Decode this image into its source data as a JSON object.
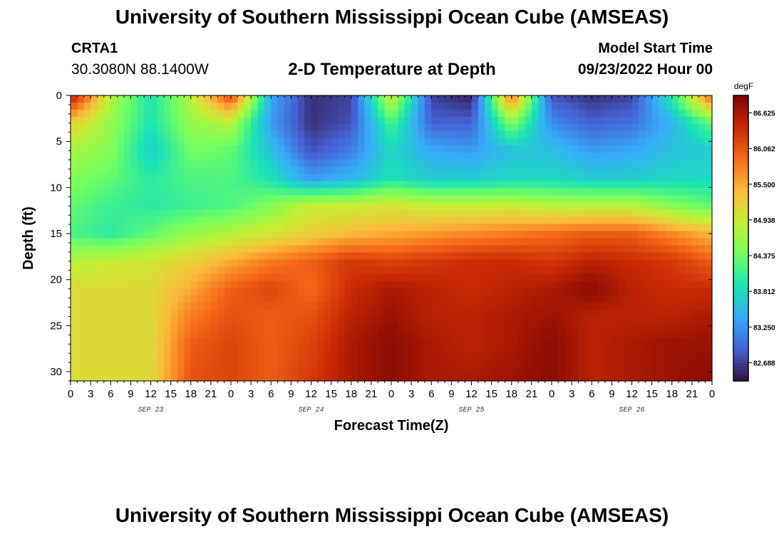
{
  "header": {
    "title": "University of Southern Mississippi Ocean Cube (AMSEAS)",
    "station": "CRTA1",
    "coords": "30.3080N  88.1400W",
    "subtitle": "2-D Temperature at Depth",
    "start_label": "Model Start Time",
    "start_value": "09/23/2022 Hour 00"
  },
  "footer": {
    "title": "University of Southern Mississippi Ocean Cube (AMSEAS)"
  },
  "colors": {
    "colormap": [
      "#30123b",
      "#4662d7",
      "#36aaf9",
      "#1ae4b6",
      "#72fe5e",
      "#c8ef34",
      "#faba39",
      "#f66b19",
      "#ca2a04",
      "#7a0403"
    ]
  },
  "chart_data": {
    "type": "heatmap",
    "title": "2-D Temperature at Depth",
    "xlabel": "Forecast Time(Z)",
    "ylabel": "Depth (ft)",
    "x_tick_labels": [
      "0",
      "3",
      "6",
      "9",
      "12",
      "15",
      "18",
      "21",
      "0",
      "3",
      "6",
      "9",
      "12",
      "15",
      "18",
      "21",
      "0",
      "3",
      "6",
      "9",
      "12",
      "15",
      "18",
      "21",
      "0",
      "3",
      "6",
      "9",
      "12",
      "15",
      "18",
      "21",
      "0"
    ],
    "x_date_labels": [
      "SEP 23",
      "SEP 24",
      "SEP 25",
      "SEP 26"
    ],
    "x_range_hours": [
      0,
      96
    ],
    "y_ticks": [
      0,
      5,
      10,
      15,
      20,
      25,
      30
    ],
    "y_range_ft": [
      0,
      31
    ],
    "colorbar": {
      "unit": "degF",
      "ticks": [
        "86.625",
        "86.062",
        "85.500",
        "84.938",
        "84.375",
        "83.812",
        "83.250",
        "82.688"
      ],
      "range": [
        82.4,
        86.9
      ]
    },
    "times_hours": [
      0,
      6,
      12,
      18,
      24,
      30,
      36,
      42,
      48,
      54,
      60,
      66,
      72,
      78,
      84,
      90,
      96
    ],
    "depths_ft": [
      0,
      3,
      6,
      9,
      12,
      15,
      18,
      21,
      24,
      27,
      31
    ],
    "values": [
      [
        86.6,
        84.8,
        83.9,
        84.8,
        86.2,
        83.4,
        82.6,
        82.7,
        85.0,
        82.7,
        82.5,
        85.9,
        82.8,
        82.6,
        82.7,
        84.0,
        86.0
      ],
      [
        85.2,
        84.6,
        83.9,
        84.6,
        84.8,
        83.3,
        82.6,
        82.8,
        84.2,
        82.9,
        82.9,
        84.5,
        83.2,
        82.9,
        83.0,
        83.5,
        84.3
      ],
      [
        84.7,
        84.5,
        83.7,
        84.4,
        84.3,
        83.6,
        82.8,
        83.1,
        83.8,
        83.4,
        83.3,
        83.6,
        83.6,
        83.3,
        83.4,
        83.6,
        83.7
      ],
      [
        84.5,
        84.3,
        84.0,
        84.2,
        84.2,
        83.9,
        83.3,
        83.5,
        83.9,
        83.7,
        83.7,
        83.8,
        83.8,
        83.7,
        83.7,
        83.8,
        83.8
      ],
      [
        84.3,
        84.1,
        84.0,
        84.1,
        84.2,
        84.5,
        84.9,
        84.9,
        85.0,
        84.9,
        84.9,
        84.9,
        84.8,
        84.8,
        84.8,
        84.5,
        84.3
      ],
      [
        84.2,
        84.0,
        84.3,
        84.6,
        84.8,
        85.0,
        85.2,
        85.4,
        85.5,
        85.6,
        85.7,
        85.8,
        85.9,
        86.0,
        86.0,
        85.7,
        85.4
      ],
      [
        84.8,
        84.9,
        85.0,
        85.2,
        85.5,
        85.8,
        86.0,
        86.3,
        86.2,
        86.3,
        86.4,
        86.4,
        86.3,
        86.5,
        86.4,
        86.3,
        86.0
      ],
      [
        85.1,
        85.1,
        85.1,
        85.5,
        86.0,
        86.2,
        85.9,
        86.4,
        86.6,
        86.5,
        86.4,
        86.5,
        86.6,
        86.8,
        86.5,
        86.4,
        86.4
      ],
      [
        85.1,
        85.1,
        85.1,
        85.8,
        86.1,
        86.0,
        86.1,
        86.5,
        86.7,
        86.5,
        86.5,
        86.6,
        86.7,
        86.5,
        86.5,
        86.5,
        86.6
      ],
      [
        85.1,
        85.1,
        85.1,
        86.0,
        86.2,
        86.0,
        86.2,
        86.6,
        86.8,
        86.6,
        86.5,
        86.6,
        86.8,
        86.5,
        86.6,
        86.7,
        86.7
      ],
      [
        85.1,
        85.1,
        85.1,
        86.1,
        86.2,
        86.0,
        86.3,
        86.6,
        86.8,
        86.6,
        86.6,
        86.7,
        86.8,
        86.5,
        86.6,
        86.7,
        86.8
      ]
    ]
  }
}
